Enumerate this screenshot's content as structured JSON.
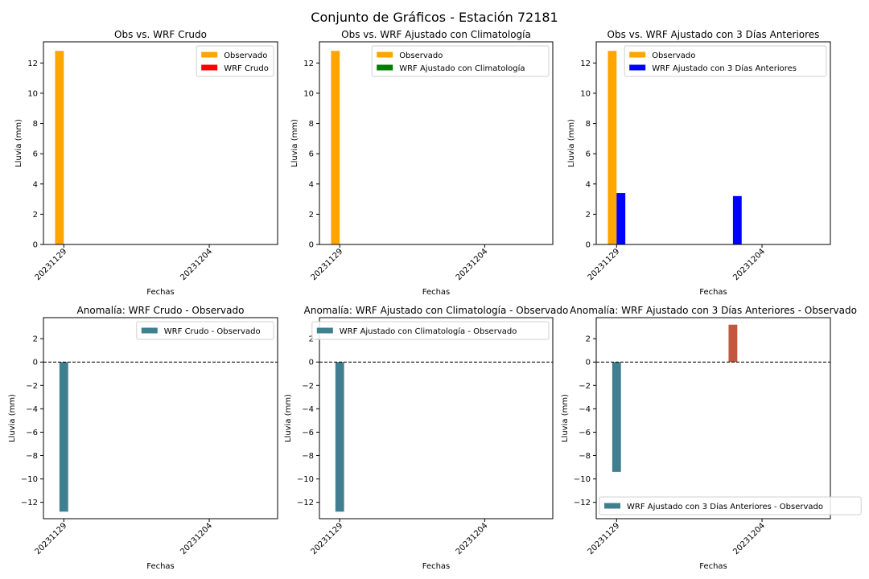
{
  "figure_title": "Conjunto de Gráficos - Estación 72181",
  "colors": {
    "observado": "#ffa500",
    "wrf_crudo": "#ff0000",
    "wrf_clim": "#008000",
    "wrf_3dias": "#0000ff",
    "anomaly_negative": "#3f7f8f",
    "anomaly_positive": "#c4553f"
  },
  "chart_data": [
    {
      "type": "bar",
      "title": "Obs vs. WRF Crudo",
      "xlabel": "Fechas",
      "ylabel": "Lluvia (mm)",
      "x_ticks": [
        0,
        5
      ],
      "x_tick_labels": [
        "20231129",
        "20231204"
      ],
      "ylim": [
        0,
        13.4
      ],
      "y_ticks": [
        0,
        2,
        4,
        6,
        8,
        10,
        12
      ],
      "legend_position": "upper right",
      "series": [
        {
          "name": "Observado",
          "color_key": "observado",
          "points": [
            [
              0,
              12.8
            ]
          ]
        },
        {
          "name": "WRF Crudo",
          "color_key": "wrf_crudo",
          "points": [
            [
              0,
              0
            ],
            [
              4,
              0
            ]
          ]
        }
      ]
    },
    {
      "type": "bar",
      "title": "Obs vs. WRF Ajustado con Climatología",
      "xlabel": "Fechas",
      "ylabel": "Lluvia (mm)",
      "x_ticks": [
        0,
        5
      ],
      "x_tick_labels": [
        "20231129",
        "20231204"
      ],
      "ylim": [
        0,
        13.4
      ],
      "y_ticks": [
        0,
        2,
        4,
        6,
        8,
        10,
        12
      ],
      "legend_position": "upper right",
      "series": [
        {
          "name": "Observado",
          "color_key": "observado",
          "points": [
            [
              0,
              12.8
            ]
          ]
        },
        {
          "name": "WRF Ajustado con Climatología",
          "color_key": "wrf_clim",
          "points": [
            [
              0,
              0
            ],
            [
              4,
              0
            ]
          ]
        }
      ]
    },
    {
      "type": "bar",
      "title": "Obs vs. WRF Ajustado con 3 Días Anteriores",
      "xlabel": "Fechas",
      "ylabel": "Lluvia (mm)",
      "x_ticks": [
        0,
        5
      ],
      "x_tick_labels": [
        "20231129",
        "20231204"
      ],
      "ylim": [
        0,
        13.4
      ],
      "y_ticks": [
        0,
        2,
        4,
        6,
        8,
        10,
        12
      ],
      "legend_position": "upper right",
      "series": [
        {
          "name": "Observado",
          "color_key": "observado",
          "points": [
            [
              0,
              12.8
            ]
          ]
        },
        {
          "name": "WRF Ajustado con 3 Días Anteriores",
          "color_key": "wrf_3dias",
          "points": [
            [
              0,
              3.4
            ],
            [
              4,
              3.2
            ]
          ]
        }
      ]
    },
    {
      "type": "bar",
      "title": "Anomalía: WRF Crudo - Observado",
      "xlabel": "Fechas",
      "ylabel": "Lluvia (mm)",
      "x_ticks": [
        0,
        5
      ],
      "x_tick_labels": [
        "20231129",
        "20231204"
      ],
      "ylim": [
        -13.4,
        3.8
      ],
      "y_ticks": [
        -12,
        -10,
        -8,
        -6,
        -4,
        -2,
        0,
        2
      ],
      "zero_line": "dashed",
      "legend_position": "upper right",
      "series": [
        {
          "name": "WRF Crudo - Observado",
          "points": [
            [
              0,
              -12.8
            ]
          ]
        }
      ]
    },
    {
      "type": "bar",
      "title": "Anomalía: WRF Ajustado con Climatología - Observado",
      "xlabel": "Fechas",
      "ylabel": "Lluvia (mm)",
      "x_ticks": [
        0,
        5
      ],
      "x_tick_labels": [
        "20231129",
        "20231204"
      ],
      "ylim": [
        -13.4,
        3.8
      ],
      "y_ticks": [
        -12,
        -10,
        -8,
        -6,
        -4,
        -2,
        0,
        2
      ],
      "zero_line": "dashed",
      "legend_position": "upper right",
      "series": [
        {
          "name": "WRF Ajustado con Climatología - Observado",
          "points": [
            [
              0,
              -12.8
            ]
          ]
        }
      ]
    },
    {
      "type": "bar",
      "title": "Anomalía: WRF Ajustado con 3 Días Anteriores - Observado",
      "xlabel": "Fechas",
      "ylabel": "Lluvia (mm)",
      "x_ticks": [
        0,
        5
      ],
      "x_tick_labels": [
        "20231129",
        "20231204"
      ],
      "ylim": [
        -13.4,
        3.8
      ],
      "y_ticks": [
        -12,
        -10,
        -8,
        -6,
        -4,
        -2,
        0,
        2
      ],
      "zero_line": "dashed",
      "legend_position": "lower left",
      "series": [
        {
          "name": "WRF Ajustado con 3 Días Anteriores - Observado",
          "points": [
            [
              0,
              -9.4
            ],
            [
              4,
              3.2
            ]
          ]
        }
      ]
    }
  ]
}
